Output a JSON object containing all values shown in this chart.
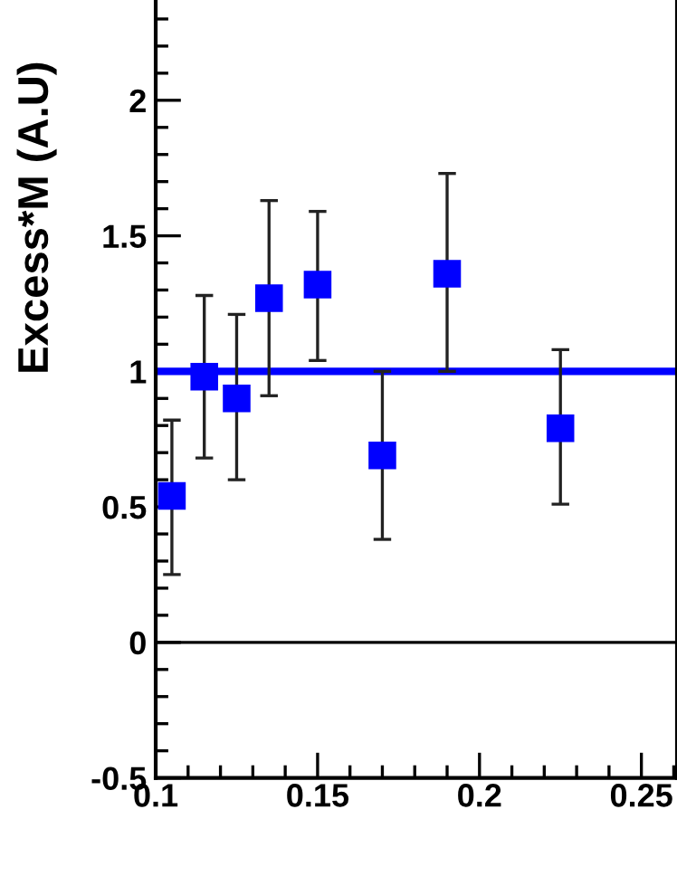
{
  "chart_data": {
    "type": "scatter",
    "ylabel": "Excess*M (A.U)",
    "x": [
      0.105,
      0.115,
      0.125,
      0.135,
      0.15,
      0.17,
      0.19,
      0.225
    ],
    "series": [
      {
        "color": "#0000ff",
        "values": [
          0.54,
          0.98,
          0.9,
          1.27,
          1.32,
          0.69,
          1.36,
          0.79
        ],
        "errors": [
          [
            0.25,
            0.82
          ],
          [
            0.68,
            1.28
          ],
          [
            0.6,
            1.21
          ],
          [
            0.91,
            1.63
          ],
          [
            1.04,
            1.59
          ],
          [
            0.38,
            1.0
          ],
          [
            1.0,
            1.73
          ],
          [
            0.51,
            1.08
          ]
        ]
      }
    ],
    "marker": "square",
    "xlim": [
      0.1,
      0.261
    ],
    "xticks": [
      0.1,
      0.15,
      0.2,
      0.25
    ],
    "ylim": [
      -0.5,
      2.37
    ],
    "yticks": [
      -0.5,
      0,
      0.5,
      1,
      1.5,
      2
    ],
    "ref_lines": [
      {
        "axis": "y",
        "value": 1,
        "color": "#0000ff"
      },
      {
        "axis": "y",
        "value": 0,
        "color": "#000000"
      }
    ]
  }
}
